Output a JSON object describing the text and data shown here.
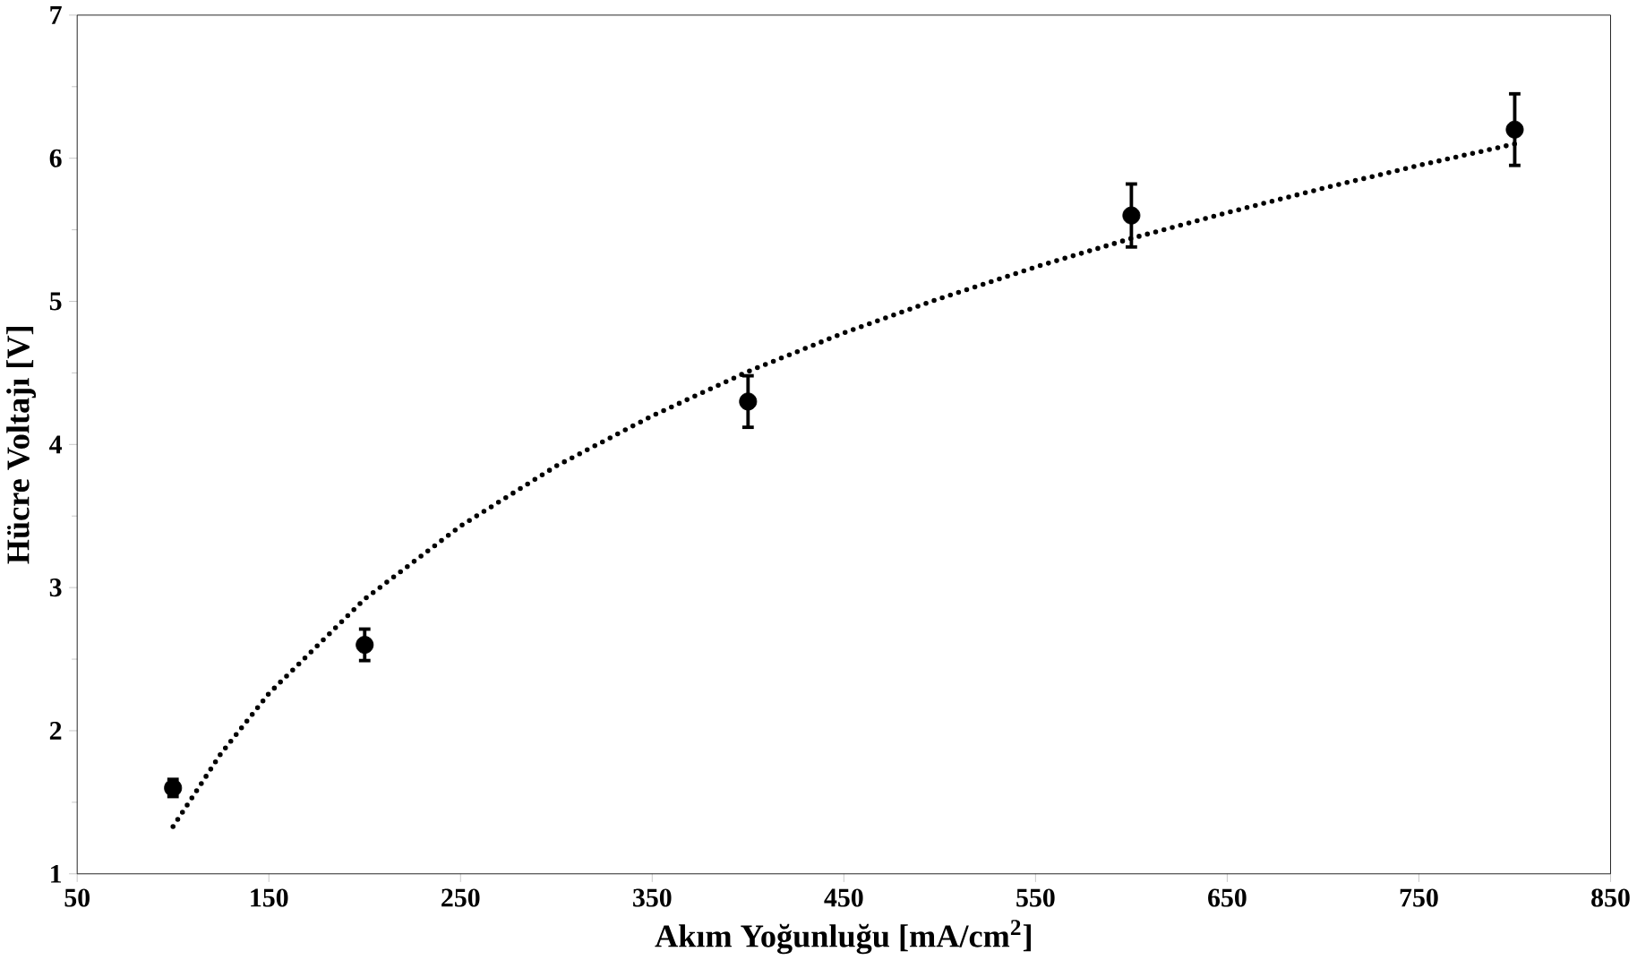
{
  "chart_data": {
    "type": "scatter",
    "xlabel": "Akım Yoğunluğu [mA/cm$^{2}$]",
    "ylabel": "Hücre Voltajı [V]",
    "xlim": [
      50,
      850
    ],
    "ylim": [
      1,
      7
    ],
    "xticks": [
      50,
      150,
      250,
      350,
      450,
      550,
      650,
      750,
      850
    ],
    "yticks": [
      1,
      2,
      3,
      4,
      5,
      6,
      7
    ],
    "grid": false,
    "series": [
      {
        "color": "#000000",
        "marker": "circle",
        "x": [
          100,
          200,
          400,
          600,
          800
        ],
        "values": [
          1.6,
          2.6,
          4.3,
          5.6,
          6.2
        ],
        "errors": [
          0.06,
          0.11,
          0.18,
          0.22,
          0.25
        ]
      },
      {
        "type": "line",
        "color": "#000000",
        "marker": "none",
        "line_style": "dotted",
        "x": [
          100,
          125,
          150,
          200,
          250,
          300,
          350,
          400,
          450,
          500,
          550,
          600,
          650,
          700,
          750,
          800
        ],
        "values": [
          1.33,
          1.84,
          2.26,
          2.92,
          3.43,
          3.85,
          4.2,
          4.51,
          4.78,
          5.02,
          5.24,
          5.44,
          5.62,
          5.79,
          5.95,
          6.1
        ]
      }
    ]
  }
}
